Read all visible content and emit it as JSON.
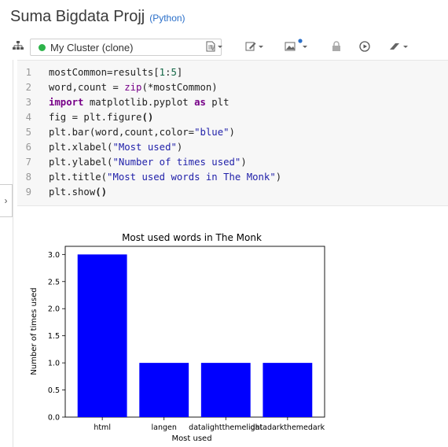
{
  "notebook": {
    "title": "Suma Bigdata Projj",
    "language": "(Python)"
  },
  "toolbar": {
    "cluster_name": "My Cluster (clone)",
    "icons": [
      "sitemap-icon",
      "file-icon",
      "edit-icon",
      "image-icon",
      "lock-icon",
      "play-icon",
      "eraser-icon"
    ]
  },
  "code_cell": {
    "line_numbers": [
      "1",
      "2",
      "3",
      "4",
      "5",
      "6",
      "7",
      "8",
      "9"
    ],
    "lines": [
      "mostCommon=results[1:5]",
      "word,count = zip(*mostCommon)",
      "import matplotlib.pyplot as plt",
      "fig = plt.figure()",
      "plt.bar(word,count,color=\"blue\")",
      "plt.xlabel(\"Most used\")",
      "plt.ylabel(\"Number of times used\")",
      "plt.title(\"Most used words in The Monk\")",
      "plt.show()"
    ]
  },
  "chart_data": {
    "type": "bar",
    "title": "Most used words in The Monk",
    "xlabel": "Most used",
    "ylabel": "Number of times used",
    "categories": [
      "html",
      "langen",
      "datalightthemelight",
      "datadarkthemedark"
    ],
    "values": [
      3,
      1,
      1,
      1
    ],
    "ylim": [
      0,
      3.15
    ],
    "yticks": [
      "0.0",
      "0.5",
      "1.0",
      "1.5",
      "2.0",
      "2.5",
      "3.0"
    ],
    "bar_color": "#0000ff",
    "grid": false
  },
  "colors": {
    "accent": "#2a6fc9",
    "status_dot": "#2db34a"
  }
}
